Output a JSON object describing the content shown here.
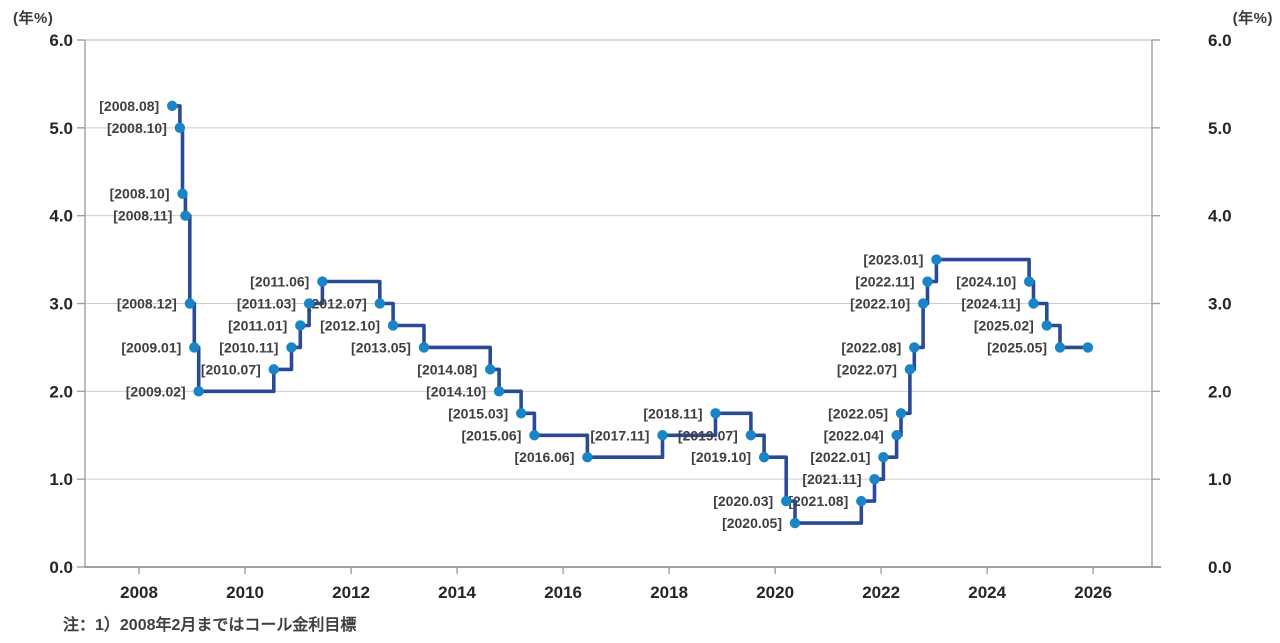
{
  "chart_data": {
    "type": "step-line",
    "title": "",
    "unit_label_left": "(年%)",
    "unit_label_right": "(年%)",
    "note": "注：1）2008年2月まではコール金利目標",
    "y_axis": {
      "min": 0.0,
      "max": 6.0,
      "tick_interval": 1.0,
      "tick_labels": [
        "0.0",
        "1.0",
        "2.0",
        "3.0",
        "4.0",
        "5.0",
        "6.0"
      ],
      "grid": true,
      "labels_on_both_sides": true
    },
    "x_axis": {
      "range_start": 2006.98,
      "range_end": 2027.11,
      "tick_years": [
        2008,
        2010,
        2012,
        2014,
        2016,
        2018,
        2020,
        2022,
        2024,
        2026
      ]
    },
    "colors": {
      "line": "#2b4a96",
      "marker": "#1a85c6",
      "grid": "#cdcdcd",
      "axis": "#a0a0a0",
      "top_border": "#b3b3b3",
      "point_label": "#3f3f3f",
      "tick_label": "#262626"
    },
    "points": [
      {
        "date": "2008.08",
        "x": 2008.625,
        "value": 5.25
      },
      {
        "date": "2008.10",
        "x": 2008.77,
        "value": 5.0
      },
      {
        "date": "2008.10",
        "x": 2008.82,
        "value": 4.25
      },
      {
        "date": "2008.11",
        "x": 2008.875,
        "value": 4.0
      },
      {
        "date": "2008.12",
        "x": 2008.958,
        "value": 3.0
      },
      {
        "date": "2009.01",
        "x": 2009.042,
        "value": 2.5
      },
      {
        "date": "2009.02",
        "x": 2009.125,
        "value": 2.0
      },
      {
        "date": "2010.07",
        "x": 2010.542,
        "value": 2.25
      },
      {
        "date": "2010.11",
        "x": 2010.875,
        "value": 2.5
      },
      {
        "date": "2011.01",
        "x": 2011.042,
        "value": 2.75
      },
      {
        "date": "2011.03",
        "x": 2011.208,
        "value": 3.0
      },
      {
        "date": "2011.06",
        "x": 2011.458,
        "value": 3.25
      },
      {
        "date": "2012.07",
        "x": 2012.542,
        "value": 3.0
      },
      {
        "date": "2012.10",
        "x": 2012.792,
        "value": 2.75
      },
      {
        "date": "2013.05",
        "x": 2013.375,
        "value": 2.5
      },
      {
        "date": "2014.08",
        "x": 2014.625,
        "value": 2.25
      },
      {
        "date": "2014.10",
        "x": 2014.792,
        "value": 2.0
      },
      {
        "date": "2015.03",
        "x": 2015.208,
        "value": 1.75
      },
      {
        "date": "2015.06",
        "x": 2015.458,
        "value": 1.5
      },
      {
        "date": "2016.06",
        "x": 2016.458,
        "value": 1.25
      },
      {
        "date": "2017.11",
        "x": 2017.875,
        "value": 1.5
      },
      {
        "date": "2018.11",
        "x": 2018.875,
        "value": 1.75
      },
      {
        "date": "2019.07",
        "x": 2019.542,
        "value": 1.5
      },
      {
        "date": "2019.10",
        "x": 2019.792,
        "value": 1.25
      },
      {
        "date": "2020.03",
        "x": 2020.208,
        "value": 0.75
      },
      {
        "date": "2020.05",
        "x": 2020.375,
        "value": 0.5
      },
      {
        "date": "2021.08",
        "x": 2021.625,
        "value": 0.75
      },
      {
        "date": "2021.11",
        "x": 2021.875,
        "value": 1.0
      },
      {
        "date": "2022.01",
        "x": 2022.042,
        "value": 1.25
      },
      {
        "date": "2022.04",
        "x": 2022.292,
        "value": 1.5
      },
      {
        "date": "2022.05",
        "x": 2022.375,
        "value": 1.75
      },
      {
        "date": "2022.07",
        "x": 2022.542,
        "value": 2.25
      },
      {
        "date": "2022.08",
        "x": 2022.625,
        "value": 2.5
      },
      {
        "date": "2022.10",
        "x": 2022.792,
        "value": 3.0
      },
      {
        "date": "2022.11",
        "x": 2022.875,
        "value": 3.25
      },
      {
        "date": "2023.01",
        "x": 2023.042,
        "value": 3.5
      },
      {
        "date": "2024.10",
        "x": 2024.792,
        "value": 3.25
      },
      {
        "date": "2024.11",
        "x": 2024.875,
        "value": 3.0
      },
      {
        "date": "2025.02",
        "x": 2025.125,
        "value": 2.75
      },
      {
        "date": "2025.05",
        "x": 2025.375,
        "value": 2.5
      }
    ],
    "line_end": {
      "x": 2025.9,
      "value": 2.5
    }
  }
}
